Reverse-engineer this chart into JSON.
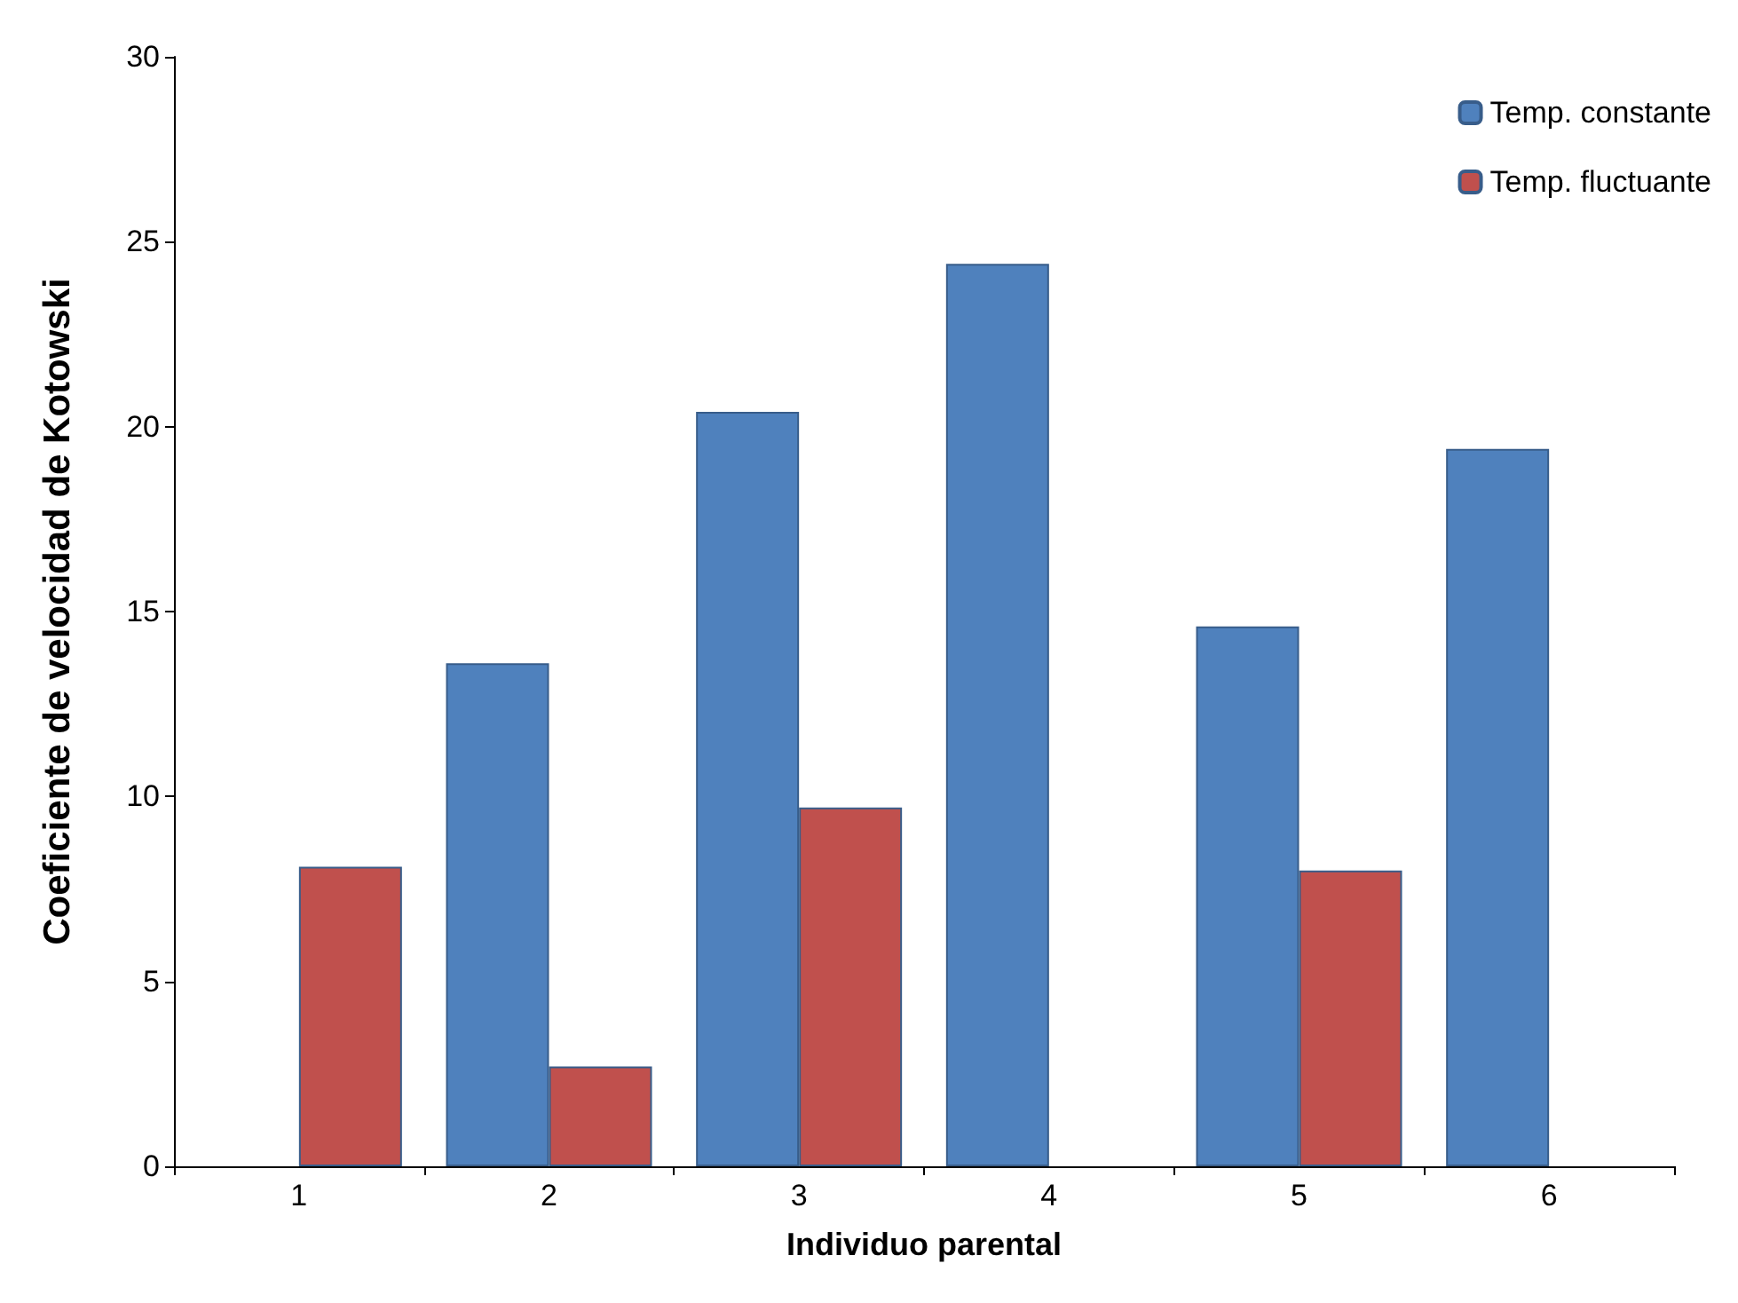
{
  "chart_data": {
    "type": "bar",
    "xlabel": "Individuo parental",
    "ylabel": "Coeficiente de velocidad de Kotowski",
    "categories": [
      "1",
      "2",
      "3",
      "4",
      "5",
      "6"
    ],
    "series": [
      {
        "name": "Temp. constante",
        "color": "#4f81bd",
        "values": [
          null,
          13.6,
          20.4,
          24.4,
          14.6,
          19.4
        ]
      },
      {
        "name": "Temp. fluctuante",
        "color": "#c0504d",
        "values": [
          8.1,
          2.7,
          9.7,
          null,
          8.0,
          null
        ]
      }
    ],
    "ylim": [
      0,
      30
    ],
    "yticks": [
      0,
      5,
      10,
      15,
      20,
      25,
      30
    ],
    "grid": false,
    "legend": "top right"
  }
}
